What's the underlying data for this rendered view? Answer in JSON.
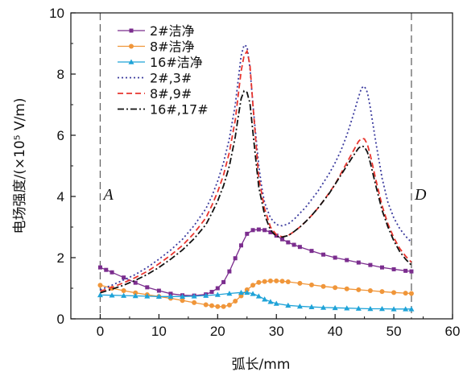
{
  "chart_data": {
    "type": "line",
    "xlabel": "弧长/mm",
    "ylabel": "电场强度/(×10⁵ V/m)",
    "xlim": [
      -5,
      60
    ],
    "ylim": [
      0,
      10
    ],
    "xticks": [
      0,
      10,
      20,
      30,
      40,
      50,
      60
    ],
    "yticks": [
      0,
      2,
      4,
      6,
      8,
      10
    ],
    "xtick_labels": [
      "0",
      "10",
      "20",
      "30",
      "40",
      "50",
      "60"
    ],
    "ytick_labels": [
      "0",
      "2",
      "4",
      "6",
      "8",
      "10"
    ],
    "legend_position": "top-left",
    "vlines": [
      {
        "x": 0,
        "label": "A"
      },
      {
        "x": 53,
        "label": "D"
      }
    ],
    "series": [
      {
        "name": "2#洁净",
        "color": "#7b2d8e",
        "style": "solid",
        "marker": "square",
        "x": [
          0,
          1,
          2,
          4,
          6,
          8,
          10,
          12,
          14,
          16,
          18,
          19,
          20,
          21,
          22,
          23,
          24,
          25,
          26,
          27,
          28,
          29,
          30,
          31,
          32,
          33,
          34,
          36,
          38,
          40,
          42,
          44,
          46,
          48,
          50,
          52,
          53
        ],
        "y": [
          1.68,
          1.6,
          1.52,
          1.35,
          1.18,
          1.03,
          0.92,
          0.82,
          0.77,
          0.76,
          0.8,
          0.88,
          1.0,
          1.2,
          1.55,
          1.98,
          2.4,
          2.78,
          2.9,
          2.92,
          2.9,
          2.83,
          2.72,
          2.6,
          2.5,
          2.42,
          2.35,
          2.22,
          2.1,
          2.0,
          1.92,
          1.84,
          1.76,
          1.68,
          1.62,
          1.57,
          1.55
        ]
      },
      {
        "name": "8#洁净",
        "color": "#f0963a",
        "style": "solid",
        "marker": "circle",
        "x": [
          0,
          2,
          4,
          6,
          8,
          10,
          12,
          14,
          16,
          18,
          19,
          20,
          21,
          22,
          23,
          24,
          25,
          26,
          27,
          28,
          29,
          30,
          31,
          32,
          34,
          36,
          38,
          40,
          42,
          44,
          46,
          48,
          50,
          52,
          53
        ],
        "y": [
          1.1,
          1.0,
          0.92,
          0.85,
          0.79,
          0.73,
          0.67,
          0.6,
          0.53,
          0.46,
          0.43,
          0.4,
          0.4,
          0.45,
          0.58,
          0.75,
          0.95,
          1.1,
          1.19,
          1.22,
          1.24,
          1.24,
          1.23,
          1.21,
          1.16,
          1.11,
          1.06,
          1.02,
          0.98,
          0.95,
          0.92,
          0.89,
          0.86,
          0.84,
          0.83
        ]
      },
      {
        "name": "16#洁净",
        "color": "#1fa3d8",
        "style": "solid",
        "marker": "triangle",
        "x": [
          0,
          2,
          4,
          6,
          8,
          10,
          12,
          14,
          16,
          18,
          20,
          22,
          24,
          25,
          26,
          27,
          28,
          29,
          30,
          32,
          34,
          36,
          38,
          40,
          42,
          44,
          46,
          48,
          50,
          52,
          53
        ],
        "y": [
          0.78,
          0.77,
          0.76,
          0.75,
          0.74,
          0.73,
          0.73,
          0.73,
          0.74,
          0.76,
          0.79,
          0.83,
          0.86,
          0.86,
          0.82,
          0.74,
          0.64,
          0.56,
          0.5,
          0.44,
          0.41,
          0.39,
          0.37,
          0.36,
          0.35,
          0.34,
          0.33,
          0.33,
          0.32,
          0.32,
          0.32
        ]
      },
      {
        "name": "2#,3#",
        "color": "#3b3b9e",
        "style": "dot",
        "marker": "none",
        "x": [
          0,
          2,
          4,
          6,
          8,
          10,
          12,
          14,
          16,
          18,
          19,
          20,
          21,
          22,
          23,
          23.5,
          24,
          24.5,
          25,
          25.5,
          26,
          26.5,
          27,
          27.5,
          28,
          29,
          30,
          31,
          32,
          33,
          34,
          35,
          36,
          37,
          38,
          39,
          40,
          41,
          42,
          43,
          44,
          44.5,
          45,
          45.5,
          46,
          47,
          48,
          49,
          50,
          51,
          52,
          53
        ],
        "y": [
          0.95,
          1.1,
          1.27,
          1.45,
          1.68,
          1.95,
          2.25,
          2.6,
          3.05,
          3.6,
          4.0,
          4.5,
          5.1,
          5.9,
          7.0,
          7.8,
          8.6,
          8.95,
          8.9,
          8.2,
          7.0,
          6.0,
          5.0,
          4.3,
          3.8,
          3.3,
          3.08,
          3.04,
          3.1,
          3.25,
          3.45,
          3.65,
          3.9,
          4.15,
          4.45,
          4.75,
          5.1,
          5.5,
          6.0,
          6.6,
          7.25,
          7.55,
          7.6,
          7.4,
          6.9,
          5.7,
          4.6,
          3.8,
          3.3,
          2.95,
          2.7,
          2.5
        ]
      },
      {
        "name": "8#,9#",
        "color": "#e8352e",
        "style": "dash",
        "marker": "none",
        "x": [
          0,
          2,
          4,
          6,
          8,
          10,
          12,
          14,
          16,
          18,
          19,
          20,
          21,
          22,
          23,
          23.5,
          24,
          24.5,
          25,
          25.5,
          26,
          26.5,
          27,
          28,
          29,
          30,
          31,
          32,
          33,
          34,
          35,
          36,
          37,
          38,
          39,
          40,
          41,
          42,
          43,
          44,
          44.5,
          45,
          45.5,
          46,
          47,
          48,
          49,
          50,
          51,
          52,
          53
        ],
        "y": [
          0.9,
          1.03,
          1.18,
          1.35,
          1.55,
          1.8,
          2.08,
          2.4,
          2.8,
          3.3,
          3.7,
          4.15,
          4.7,
          5.45,
          6.5,
          7.3,
          8.1,
          8.6,
          8.75,
          8.3,
          7.0,
          5.8,
          4.6,
          3.6,
          3.0,
          2.75,
          2.68,
          2.72,
          2.85,
          3.0,
          3.18,
          3.38,
          3.6,
          3.85,
          4.12,
          4.4,
          4.75,
          5.1,
          5.45,
          5.8,
          5.9,
          5.88,
          5.7,
          5.35,
          4.5,
          3.7,
          3.1,
          2.65,
          2.3,
          2.05,
          1.85
        ]
      },
      {
        "name": "16#,17#",
        "color": "#111111",
        "style": "dashdot",
        "marker": "none",
        "x": [
          0,
          2,
          4,
          6,
          8,
          10,
          12,
          14,
          16,
          18,
          19,
          20,
          21,
          22,
          23,
          23.5,
          24,
          24.5,
          25,
          25.5,
          26,
          26.5,
          27,
          28,
          29,
          30,
          31,
          32,
          33,
          34,
          35,
          36,
          37,
          38,
          39,
          40,
          41,
          42,
          43,
          44,
          44.5,
          45,
          45.5,
          46,
          47,
          48,
          49,
          50,
          51,
          52,
          53
        ],
        "y": [
          0.85,
          0.97,
          1.1,
          1.26,
          1.45,
          1.68,
          1.95,
          2.25,
          2.62,
          3.08,
          3.45,
          3.85,
          4.35,
          5.0,
          5.95,
          6.6,
          7.2,
          7.45,
          7.4,
          7.05,
          6.1,
          5.2,
          4.3,
          3.4,
          2.9,
          2.7,
          2.67,
          2.72,
          2.85,
          3.0,
          3.18,
          3.38,
          3.6,
          3.85,
          4.1,
          4.4,
          4.7,
          5.0,
          5.3,
          5.58,
          5.65,
          5.62,
          5.45,
          5.1,
          4.3,
          3.55,
          3.0,
          2.55,
          2.2,
          1.95,
          1.75
        ]
      }
    ]
  }
}
